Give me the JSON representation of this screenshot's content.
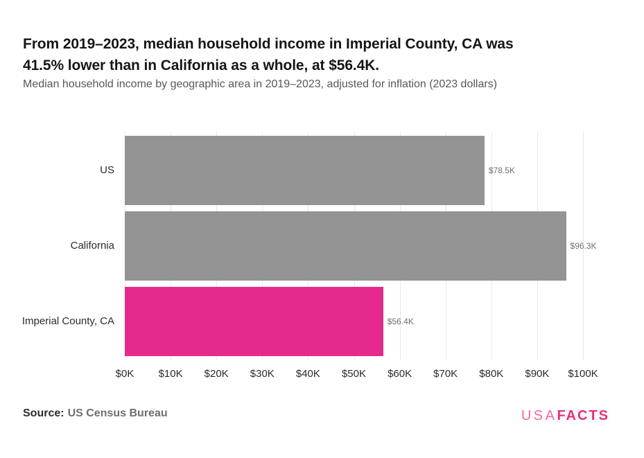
{
  "header": {
    "title_line1": "From 2019–2023, median household income in Imperial County, CA was",
    "title_line2": "41.5% lower than in California as a whole, at $56.4K.",
    "subtitle": "Median household income by geographic area in 2019–2023, adjusted for inflation (2023 dollars)"
  },
  "chart_data": {
    "type": "bar",
    "orientation": "horizontal",
    "title": "From 2019–2023, median household income in Imperial County, CA was 41.5% lower than in California as a whole, at $56.4K.",
    "subtitle": "Median household income by geographic area in 2019–2023, adjusted for inflation (2023 dollars)",
    "categories": [
      "US",
      "California",
      "Imperial County, CA"
    ],
    "values": [
      78.5,
      96.3,
      56.4
    ],
    "value_labels": [
      "$78.5K",
      "$96.3K",
      "$56.4K"
    ],
    "units": "thousands of 2023 dollars",
    "xlim": [
      0,
      100
    ],
    "x_tick_values": [
      0,
      10,
      20,
      30,
      40,
      50,
      60,
      70,
      80,
      90,
      100
    ],
    "x_tick_labels": [
      "$0K",
      "$10K",
      "$20K",
      "$30K",
      "$40K",
      "$50K",
      "$60K",
      "$70K",
      "$80K",
      "$90K",
      "$100K"
    ],
    "grid": "vertical",
    "legend": "none",
    "bar_colors": [
      "#949494",
      "#949494",
      "#e62a8d"
    ],
    "default_color": "#949494",
    "highlight_color": "#e62a8d",
    "gridline_color": "#e8e8e8"
  },
  "footer": {
    "source_label": "Source:",
    "source_name": "US Census Bureau",
    "logo_part1": "USA",
    "logo_part2": "FACTS"
  }
}
